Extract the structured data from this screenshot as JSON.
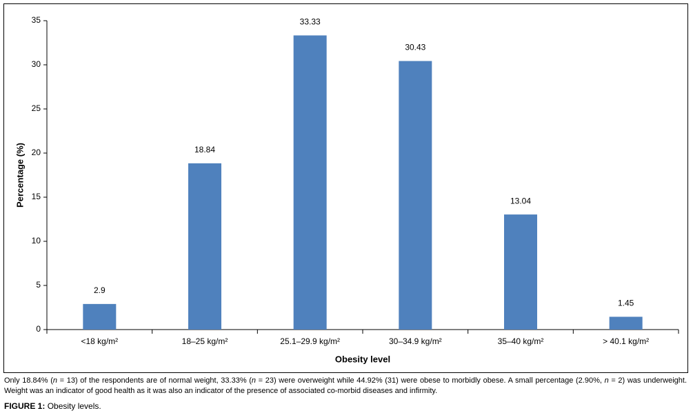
{
  "chart_data": {
    "type": "bar",
    "x_label": "Obesity level",
    "y_label": "Percentage (%)",
    "categories": [
      "<18 kg/m²",
      "18–25 kg/m²",
      "25.1–29.9 kg/m²",
      "30–34.9 kg/m²",
      "35–40 kg/m²",
      "> 40.1 kg/m²"
    ],
    "values": [
      2.9,
      18.84,
      33.33,
      30.43,
      13.04,
      1.45
    ],
    "color": "#4f81bd",
    "ylim": [
      0,
      35
    ],
    "yticks": [
      0,
      5,
      10,
      15,
      20,
      25,
      30,
      35
    ],
    "grid": false
  },
  "note": [
    "Only 18.84% (",
    "n",
    " = 13) of the respondents are of normal weight, 33.33% (",
    "n",
    " = 23) were overweight while 44.92% (31) were obese to morbidly obese. A small percentage (2.90%, ",
    "n",
    " = 2) was underweight. Weight was an indicator of good health as it was also an indicator of the presence of associated co-morbid diseases and infirmity."
  ],
  "figure": {
    "label": "FIGURE 1:",
    "title": "Obesity levels."
  }
}
